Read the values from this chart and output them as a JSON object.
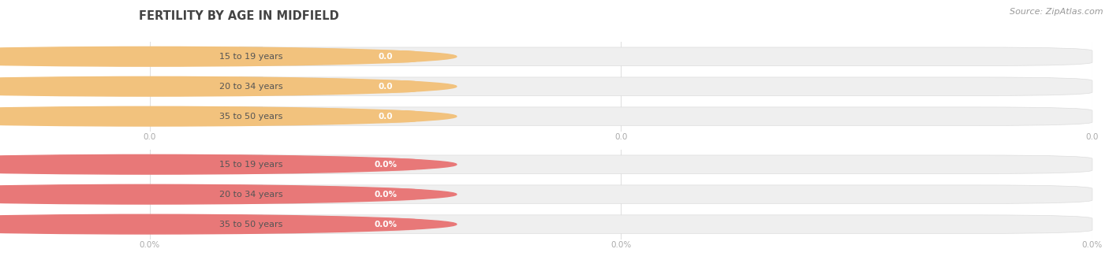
{
  "title": "FERTILITY BY AGE IN MIDFIELD",
  "source_text": "Source: ZipAtlas.com",
  "sections": [
    {
      "categories": [
        "15 to 19 years",
        "20 to 34 years",
        "35 to 50 years"
      ],
      "values": [
        0.0,
        0.0,
        0.0
      ],
      "bar_color": "#f2c27d",
      "circle_color": "#f2c27d",
      "value_pill_color": "#f2c27d",
      "is_percent": false,
      "x_tick_labels": [
        "0.0",
        "0.0",
        "0.0"
      ]
    },
    {
      "categories": [
        "15 to 19 years",
        "20 to 34 years",
        "35 to 50 years"
      ],
      "values": [
        0.0,
        0.0,
        0.0
      ],
      "bar_color": "#f0a0a0",
      "circle_color": "#e87878",
      "value_pill_color": "#f0a0a0",
      "is_percent": true,
      "x_tick_labels": [
        "0.0%",
        "0.0%",
        "0.0%"
      ]
    }
  ],
  "fig_width": 14.06,
  "fig_height": 3.3,
  "bg_color": "#ffffff",
  "title_color": "#444444",
  "title_fontsize": 10.5,
  "source_fontsize": 8,
  "bar_bg_color": "#efefef",
  "bar_border_color": "#dddddd",
  "label_text_color": "#555555",
  "value_text_color": "#ffffff",
  "tick_label_color": "#aaaaaa",
  "grid_color": "#e0e0e0",
  "tick_fontsize": 7.5,
  "label_fontsize": 8,
  "value_fontsize": 7.5
}
